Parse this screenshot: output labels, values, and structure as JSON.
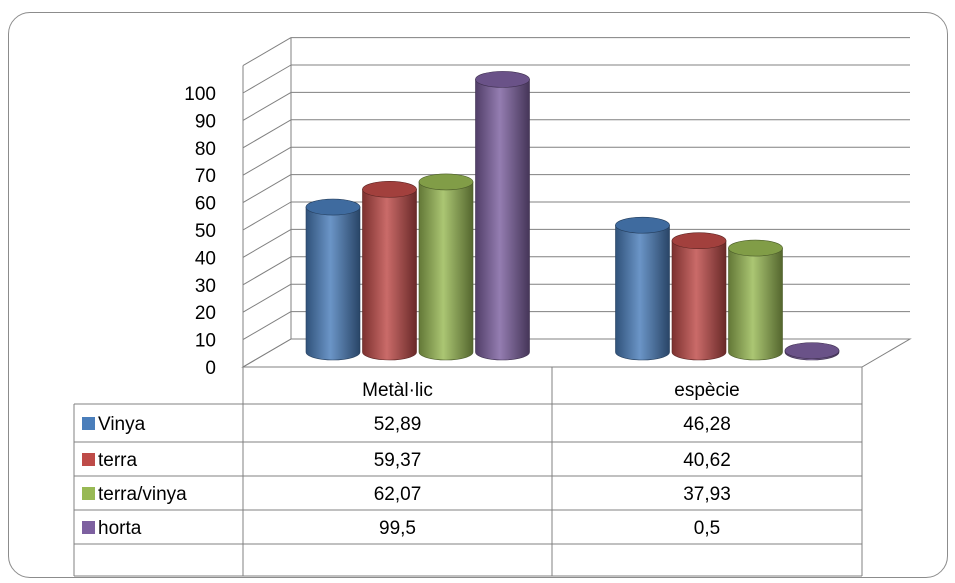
{
  "chart_data": {
    "type": "bar",
    "categories": [
      "Metàl·lic",
      "espècie"
    ],
    "series": [
      {
        "name": "Vinya",
        "values": [
          52.89,
          46.28
        ],
        "display": [
          "52,89",
          "46,28"
        ],
        "color": "#4a7ebb"
      },
      {
        "name": "terra",
        "values": [
          59.37,
          40.62
        ],
        "display": [
          "59,37",
          "40,62"
        ],
        "color": "#be4b48"
      },
      {
        "name": "terra/vinya",
        "values": [
          62.07,
          37.93
        ],
        "display": [
          "62,07",
          "37,93"
        ],
        "color": "#98b954"
      },
      {
        "name": "horta",
        "values": [
          99.5,
          0.5
        ],
        "display": [
          "99,5",
          "0,5"
        ],
        "color": "#7d60a0"
      }
    ],
    "yticks": [
      "0",
      "10",
      "20",
      "30",
      "40",
      "50",
      "60",
      "70",
      "80",
      "90",
      "100"
    ],
    "ylim": [
      0,
      100
    ],
    "grid": true,
    "legend": "data-table",
    "style": "3d-cylinder"
  }
}
